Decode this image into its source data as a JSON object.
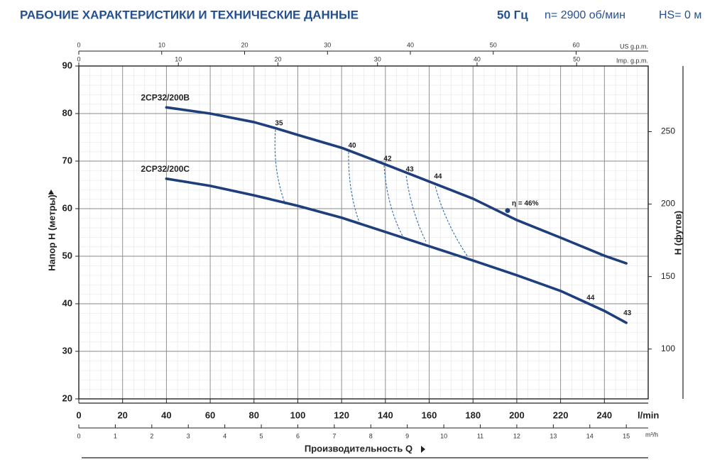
{
  "chart_data": {
    "type": "line",
    "title": "РАБОЧИЕ ХАРАКТЕРИСТИКИ И ТЕХНИЧЕСКИЕ ДАННЫЕ",
    "frequency": "50 Гц",
    "speed": "n= 2900 об/мин",
    "suction": "HS= 0 м",
    "x_label": "Производительность Q",
    "y_label": "Напор H (метры)",
    "y2_label": "H (футов)",
    "x_unit": "l/min",
    "xlim": [
      0,
      260
    ],
    "xticks": [
      0,
      20,
      40,
      60,
      80,
      100,
      120,
      140,
      160,
      180,
      200,
      220,
      240
    ],
    "ylim": [
      20,
      90
    ],
    "yticks": [
      20,
      30,
      40,
      50,
      60,
      70,
      80,
      90
    ],
    "y2lim": [
      65.62,
      295.28
    ],
    "y2ticks": [
      100,
      150,
      200,
      250
    ],
    "extra_x_axes": [
      {
        "label": "m³/h",
        "lim": [
          0,
          15.6
        ],
        "ticks": [
          0,
          1,
          2,
          3,
          4,
          5,
          6,
          7,
          8,
          9,
          10,
          11,
          12,
          13,
          14,
          15
        ]
      },
      {
        "label": "US g.p.m.",
        "lim": [
          0,
          68.69
        ],
        "ticks": [
          0,
          10,
          20,
          30,
          40,
          50,
          60
        ]
      },
      {
        "label": "Imp. g.p.m.",
        "lim": [
          0,
          57.19
        ],
        "ticks": [
          0,
          10,
          20,
          30,
          40,
          50
        ]
      }
    ],
    "grid": true,
    "series": [
      {
        "name": "2CP32/200B",
        "color": "#1e3f7c",
        "x": [
          40,
          60,
          80,
          90,
          100,
          120,
          140,
          160,
          180,
          200,
          220,
          240,
          250
        ],
        "values": [
          81.3,
          80.0,
          78.2,
          76.9,
          75.5,
          72.8,
          69.3,
          65.7,
          62.1,
          57.6,
          53.9,
          50.1,
          48.5
        ]
      },
      {
        "name": "2CP32/200C",
        "color": "#1e3f7c",
        "x": [
          40,
          60,
          80,
          100,
          120,
          140,
          160,
          180,
          200,
          220,
          240,
          250
        ],
        "values": [
          66.3,
          64.8,
          62.8,
          60.6,
          58.1,
          55.1,
          52.1,
          49.1,
          46.0,
          42.7,
          38.5,
          36.0
        ]
      }
    ],
    "efficiency_curves": [
      {
        "label": 35,
        "x": [
          89.8,
          88.5,
          94.3
        ],
        "values": [
          76.6,
          68.1,
          60.9
        ]
      },
      {
        "label": 40,
        "x": [
          123.2,
          122.9,
          128.4
        ],
        "values": [
          71.9,
          63.6,
          56.7
        ]
      },
      {
        "label": 42,
        "x": [
          139.4,
          140.7,
          147.8
        ],
        "values": [
          69.1,
          60.6,
          54.3
        ]
      },
      {
        "label": 43,
        "x": [
          149.5,
          152.0,
          158.5
        ],
        "values": [
          66.9,
          59.1,
          53.1
        ]
      },
      {
        "label": 44,
        "x": [
          162.4,
          166.6,
          177.3
        ],
        "values": [
          65.4,
          57.6,
          50.1
        ]
      }
    ],
    "efficiency_color": "#2f6fb0",
    "annotations": [
      {
        "text": "η = 46%",
        "x": 195.8,
        "y": 59.6,
        "marker": true
      },
      {
        "text": "44",
        "x": 233.7,
        "y": 41.2,
        "marker": false
      },
      {
        "text": "43",
        "x": 250.5,
        "y": 38.0,
        "marker": false
      }
    ]
  }
}
